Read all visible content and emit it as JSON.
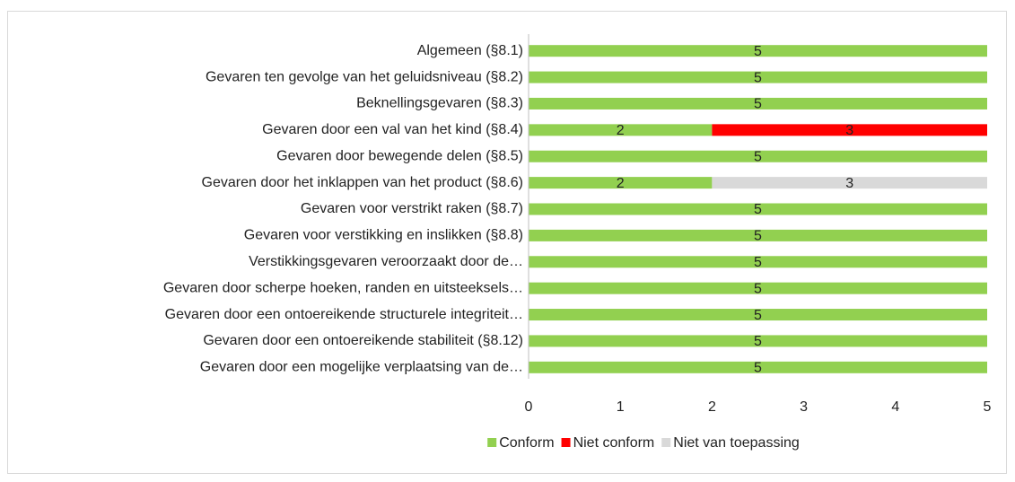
{
  "chart_data": {
    "type": "stacked_bar_horizontal",
    "categories": [
      "Algemeen (§8.1)",
      "Gevaren ten gevolge van het geluidsniveau (§8.2)",
      "Beknellingsgevaren (§8.3)",
      "Gevaren door een val van het kind (§8.4)",
      "Gevaren door bewegende delen (§8.5)",
      "Gevaren door het inklappen van het product (§8.6)",
      "Gevaren voor verstrikt raken (§8.7)",
      "Gevaren voor verstikking en inslikken (§8.8)",
      "Verstikkingsgevaren veroorzaakt door de…",
      "Gevaren door scherpe hoeken, randen en uitsteeksels…",
      "Gevaren door een ontoereikende structurele integriteit…",
      "Gevaren door een ontoereikende stabiliteit (§8.12)",
      "Gevaren door een mogelijke verplaatsing van de…"
    ],
    "series": [
      {
        "name": "Conform",
        "color": "#92d050",
        "values": [
          5,
          5,
          5,
          2,
          5,
          2,
          5,
          5,
          5,
          5,
          5,
          5,
          5
        ]
      },
      {
        "name": "Niet conform",
        "color": "#ff0000",
        "values": [
          null,
          null,
          null,
          3,
          null,
          null,
          null,
          null,
          null,
          null,
          null,
          null,
          null
        ]
      },
      {
        "name": "Niet van toepassing",
        "color": "#d9d9d9",
        "values": [
          null,
          null,
          null,
          null,
          null,
          3,
          null,
          null,
          null,
          null,
          null,
          null,
          null
        ]
      }
    ],
    "xlim": [
      0,
      5
    ],
    "xticks": [
      0,
      1,
      2,
      3,
      4,
      5
    ],
    "grid": false,
    "legend": "bottom"
  }
}
